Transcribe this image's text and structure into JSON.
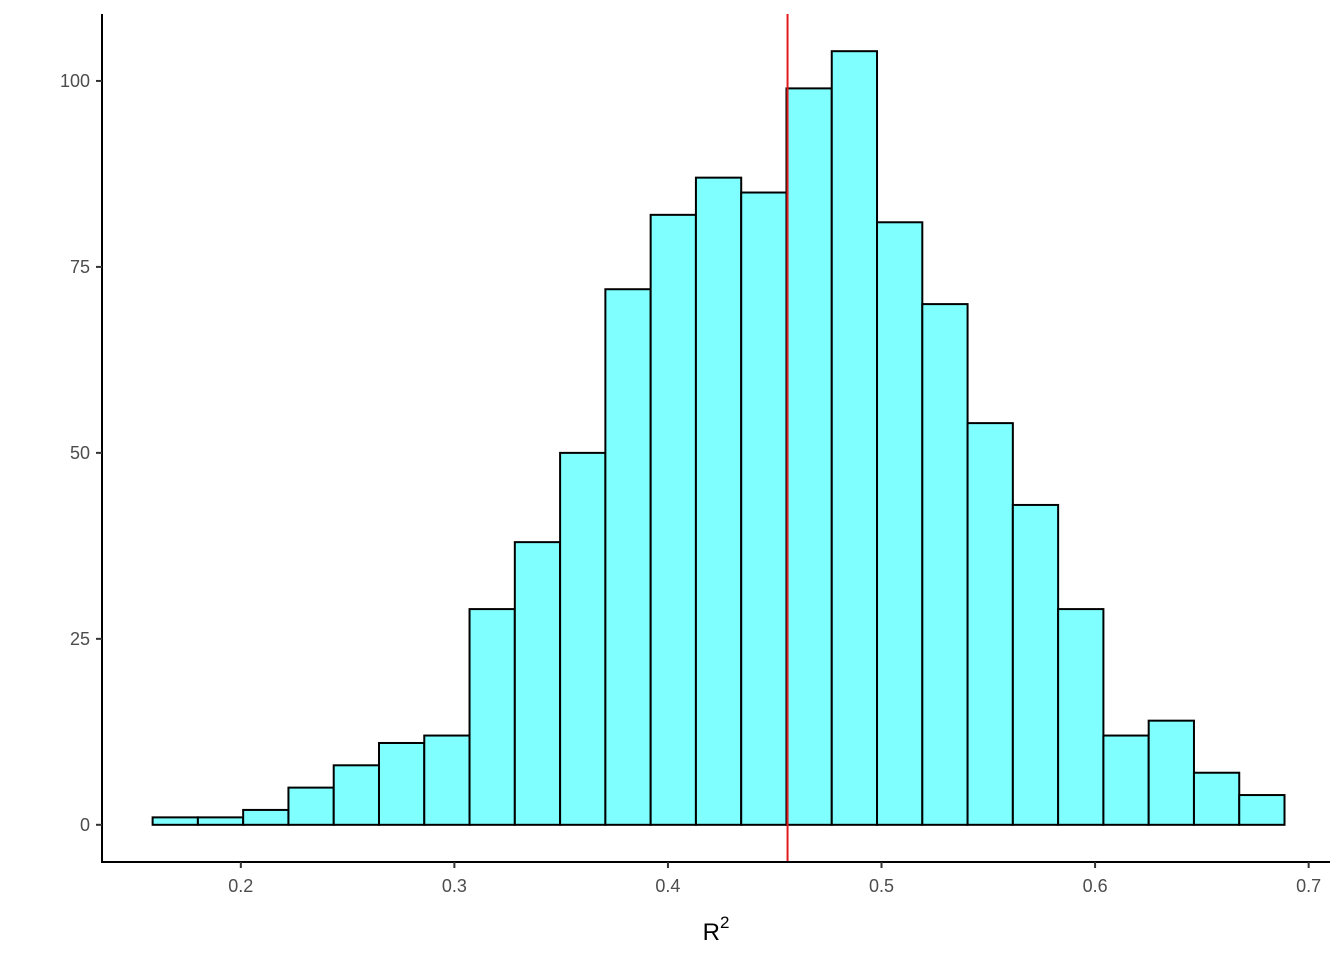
{
  "chart_data": {
    "type": "bar",
    "subtype": "histogram",
    "title": "",
    "xlabel": "R",
    "xlabel_superscript": "2",
    "ylabel": "",
    "xlim": [
      0.135,
      0.71
    ],
    "ylim": [
      -5,
      109
    ],
    "grid": false,
    "x_ticks": [
      0.2,
      0.3,
      0.4,
      0.5,
      0.6,
      0.7
    ],
    "x_tick_labels": [
      "0.2",
      "0.3",
      "0.4",
      "0.5",
      "0.6",
      "0.7"
    ],
    "y_ticks": [
      0,
      25,
      50,
      75,
      100
    ],
    "y_tick_labels": [
      "0",
      "25",
      "50",
      "75",
      "100"
    ],
    "bin_width": 0.0212,
    "bin_edges": [
      0.1587,
      0.1799,
      0.2011,
      0.2223,
      0.2435,
      0.2647,
      0.2859,
      0.3071,
      0.3283,
      0.3495,
      0.3707,
      0.3919,
      0.4131,
      0.4343,
      0.4555,
      0.4767,
      0.4979,
      0.5191,
      0.5403,
      0.5615,
      0.5827,
      0.6039,
      0.6251,
      0.6463,
      0.6675,
      0.6887
    ],
    "counts": [
      1,
      1,
      2,
      5,
      8,
      11,
      12,
      29,
      38,
      50,
      72,
      82,
      87,
      85,
      99,
      104,
      81,
      70,
      54,
      43,
      29,
      12,
      14,
      7,
      4
    ],
    "reference_line": {
      "x": 0.456,
      "color": "#e31a1c"
    },
    "colors": {
      "bar_fill": "#7fffff",
      "bar_outline": "#000000",
      "axis": "#000000",
      "tick_label": "#4d4d4d"
    }
  }
}
